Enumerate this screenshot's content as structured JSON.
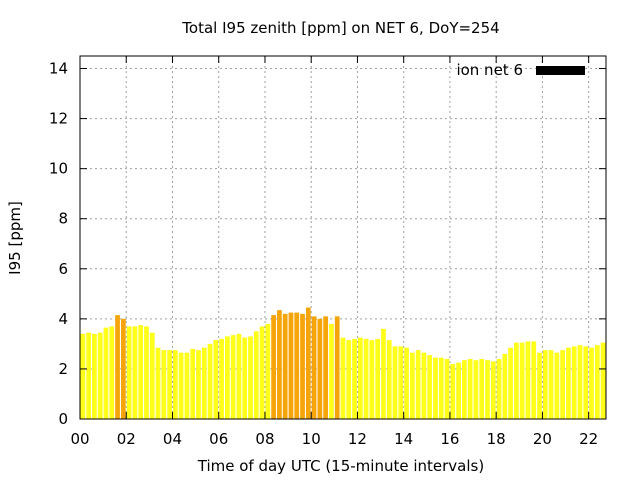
{
  "chart_data": {
    "type": "bar",
    "title": "Total I95 zenith [ppm] on NET 6, DoY=254",
    "xlabel": "Time of day UTC (15-minute intervals)",
    "ylabel": "I95 [ppm]",
    "xlim": [
      0,
      22.75
    ],
    "ylim": [
      0,
      14.5
    ],
    "x_ticks": [
      "00",
      "02",
      "04",
      "06",
      "08",
      "10",
      "12",
      "14",
      "16",
      "18",
      "20",
      "22"
    ],
    "y_ticks": [
      "0",
      "2",
      "4",
      "6",
      "8",
      "10",
      "12",
      "14"
    ],
    "grid": true,
    "legend": {
      "label": "ion net 6",
      "position": "top-right",
      "color": "#000000"
    },
    "colors": {
      "normal": "#ffff1a",
      "elevated": "#f5a50a",
      "threshold": 4.0
    },
    "series": [
      {
        "name": "ion net 6",
        "x_start_hours": 0,
        "x_step_hours": 0.25,
        "values": [
          3.4,
          3.45,
          3.4,
          3.45,
          3.65,
          3.7,
          4.15,
          4.0,
          3.7,
          3.7,
          3.75,
          3.7,
          3.45,
          2.85,
          2.75,
          2.75,
          2.75,
          2.65,
          2.65,
          2.8,
          2.75,
          2.85,
          3.0,
          3.15,
          3.2,
          3.3,
          3.35,
          3.4,
          3.25,
          3.3,
          3.5,
          3.7,
          3.8,
          4.15,
          4.35,
          4.2,
          4.25,
          4.25,
          4.2,
          4.45,
          4.1,
          4.0,
          4.1,
          3.8,
          4.1,
          3.25,
          3.15,
          3.2,
          3.25,
          3.2,
          3.15,
          3.2,
          3.6,
          3.15,
          2.9,
          2.9,
          2.85,
          2.65,
          2.75,
          2.65,
          2.55,
          2.45,
          2.45,
          2.4,
          2.2,
          2.25,
          2.35,
          2.4,
          2.35,
          2.4,
          2.35,
          2.3,
          2.4,
          2.6,
          2.85,
          3.05,
          3.05,
          3.1,
          3.1,
          2.65,
          2.75,
          2.75,
          2.65,
          2.75,
          2.85,
          2.9,
          2.95,
          2.9,
          2.85,
          2.95,
          3.05
        ]
      }
    ]
  }
}
